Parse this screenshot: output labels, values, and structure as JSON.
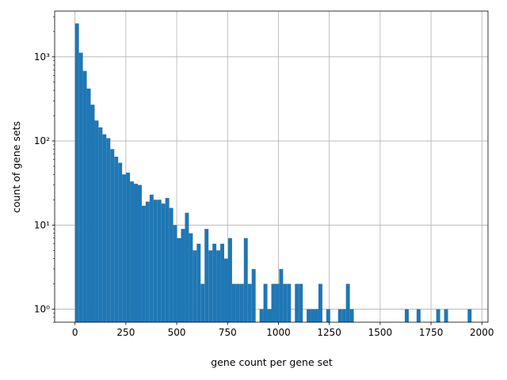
{
  "chart_data": {
    "type": "bar",
    "subtype": "histogram",
    "title": "",
    "xlabel": "gene count per gene set",
    "ylabel": "count of gene sets",
    "y_scale": "log",
    "xlim": [
      -100,
      2030
    ],
    "ylim": [
      0.7,
      3500
    ],
    "x_ticks": [
      0,
      250,
      500,
      750,
      1000,
      1250,
      1500,
      1750,
      2000
    ],
    "y_ticks": [
      1,
      10,
      100,
      1000
    ],
    "y_tick_labels": [
      "10⁰",
      "10¹",
      "10²",
      "10³"
    ],
    "grid": true,
    "legend": "none",
    "bar_color": "#1f77b4",
    "bin_width": 19.3,
    "bin_start": 0,
    "values": [
      2500,
      1120,
      680,
      420,
      270,
      175,
      145,
      120,
      108,
      80,
      65,
      55,
      40,
      42,
      33,
      31,
      30,
      17,
      19,
      23,
      20,
      20,
      18,
      21,
      16,
      10,
      7,
      9,
      14,
      8,
      5,
      6,
      2,
      9,
      5,
      6,
      5,
      6,
      4,
      7,
      2,
      2,
      2,
      7,
      2,
      3,
      0,
      1,
      2,
      1,
      2,
      2,
      3,
      2,
      2,
      0,
      2,
      2,
      0,
      1,
      1,
      1,
      2,
      0,
      1,
      0,
      0,
      1,
      1,
      2,
      1,
      0,
      0,
      0,
      0,
      0,
      0,
      0,
      0,
      0,
      0,
      0,
      0,
      0,
      1,
      0,
      0,
      1,
      0,
      0,
      0,
      0,
      1,
      0,
      1,
      0,
      0,
      0,
      0,
      0,
      1
    ]
  }
}
